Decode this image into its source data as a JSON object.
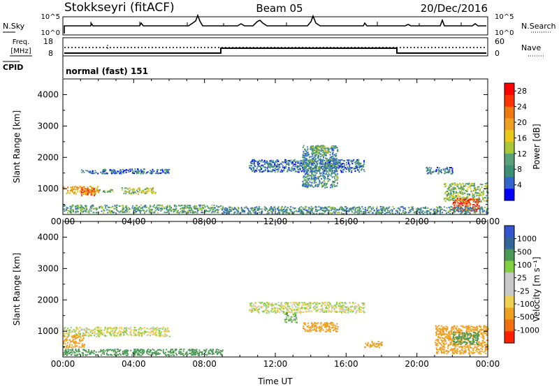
{
  "header": {
    "station": "Stokkseyri (fitACF)",
    "beam": "Beam 05",
    "date": "20/Dec/2016"
  },
  "noise_panel": {
    "left_label": "N.Sky",
    "left_ticks": [
      "10^5",
      "10^0"
    ],
    "right_label": "N.Search",
    "right_ticks": [
      "10^5",
      "10^0"
    ]
  },
  "freq_panel": {
    "label_line1": "Freq.",
    "label_line2": "[MHz]",
    "left_ticks": [
      "18",
      "8"
    ],
    "right_label": "Nave",
    "right_ticks": [
      "60",
      "0"
    ],
    "cpid_label": "CPID",
    "cpid_text": "normal (fast) 151"
  },
  "colors": {
    "power_scale": [
      "#0000ff",
      "#3366cc",
      "#3c8f75",
      "#5aa078",
      "#a8c838",
      "#e8c81a",
      "#f0a020",
      "#f07810",
      "#ff3300",
      "#ff0000"
    ],
    "velocity_scale": [
      "#3355cc",
      "#336699",
      "#4c9955",
      "#80d040",
      "#c8c8c8",
      "#c8c8c8",
      "#f0d050",
      "#f0a020",
      "#f07010",
      "#ff2000"
    ]
  },
  "chart_data": [
    {
      "type": "heatmap",
      "title": "",
      "quantity": "Power",
      "xlabel": "",
      "ylabel": "Slant Range [km]",
      "x_ticks": [
        "00:00",
        "04:00",
        "08:00",
        "12:00",
        "16:00",
        "20:00",
        "00:00"
      ],
      "y_ticks": [
        "1000",
        "2000",
        "3000",
        "4000"
      ],
      "xlim_hours": [
        0,
        24
      ],
      "ylim_km": [
        180,
        4500
      ],
      "colorbar_label": "Power [dB]",
      "colorbar_ticks": [
        "4",
        "8",
        "12",
        "16",
        "20",
        "24",
        "28"
      ],
      "colorbar_range": [
        0,
        30
      ],
      "echo_regions": [
        {
          "t0": 0.0,
          "t1": 2.0,
          "r0": 850,
          "r1": 1100,
          "power": 18
        },
        {
          "t0": 1.0,
          "t1": 1.8,
          "r0": 800,
          "r1": 1050,
          "power": 24
        },
        {
          "t0": 2.0,
          "t1": 2.8,
          "r0": 900,
          "r1": 1000,
          "power": 12
        },
        {
          "t0": 3.3,
          "t1": 5.2,
          "r0": 850,
          "r1": 1050,
          "power": 14
        },
        {
          "t0": 0.0,
          "t1": 9.0,
          "r0": 250,
          "r1": 500,
          "power": 10
        },
        {
          "t0": 1.0,
          "t1": 6.0,
          "r0": 1500,
          "r1": 1650,
          "power": 6
        },
        {
          "t0": 10.5,
          "t1": 17.0,
          "r0": 1550,
          "r1": 1950,
          "power": 6
        },
        {
          "t0": 13.5,
          "t1": 15.5,
          "r0": 1050,
          "r1": 2400,
          "power": 8
        },
        {
          "t0": 14.0,
          "t1": 15.0,
          "r0": 2100,
          "r1": 2400,
          "power": 12
        },
        {
          "t0": 21.5,
          "t1": 24.0,
          "r0": 600,
          "r1": 1200,
          "power": 12
        },
        {
          "t0": 22.0,
          "t1": 23.5,
          "r0": 300,
          "r1": 700,
          "power": 26
        },
        {
          "t0": 20.5,
          "t1": 22.0,
          "r0": 1500,
          "r1": 1700,
          "power": 6
        },
        {
          "t0": 9.0,
          "t1": 24.0,
          "r0": 220,
          "r1": 450,
          "power": 8
        }
      ]
    },
    {
      "type": "heatmap",
      "title": "",
      "quantity": "Velocity",
      "xlabel": "Time UT",
      "ylabel": "Slant Range [km]",
      "x_ticks": [
        "00:00",
        "04:00",
        "08:00",
        "12:00",
        "16:00",
        "20:00",
        "00:00"
      ],
      "y_ticks": [
        "1000",
        "2000",
        "3000",
        "4000"
      ],
      "xlim_hours": [
        0,
        24
      ],
      "ylim_km": [
        180,
        4500
      ],
      "colorbar_label": "Velocity [m s⁻¹]",
      "colorbar_ticks": [
        "1000",
        "500",
        "100",
        "25",
        "-25",
        "-100",
        "-500",
        "-1000"
      ],
      "echo_regions": [
        {
          "t0": 0.0,
          "t1": 6.0,
          "r0": 850,
          "r1": 1150,
          "velocity": 0
        },
        {
          "t0": 0.0,
          "t1": 1.2,
          "r0": 500,
          "r1": 900,
          "velocity": -300
        },
        {
          "t0": 0.0,
          "t1": 9.0,
          "r0": 250,
          "r1": 450,
          "velocity": 200
        },
        {
          "t0": 10.5,
          "t1": 17.0,
          "r0": 1600,
          "r1": 1950,
          "velocity": 0
        },
        {
          "t0": 13.5,
          "t1": 15.5,
          "r0": 1000,
          "r1": 1300,
          "velocity": -300
        },
        {
          "t0": 12.5,
          "t1": 13.2,
          "r0": 1300,
          "r1": 1600,
          "velocity": 80
        },
        {
          "t0": 21.0,
          "t1": 24.0,
          "r0": 300,
          "r1": 1200,
          "velocity": -200
        },
        {
          "t0": 22.0,
          "t1": 23.5,
          "r0": 600,
          "r1": 1000,
          "velocity": 300
        },
        {
          "t0": 17.0,
          "t1": 18.0,
          "r0": 500,
          "r1": 700,
          "velocity": -300
        }
      ]
    }
  ]
}
